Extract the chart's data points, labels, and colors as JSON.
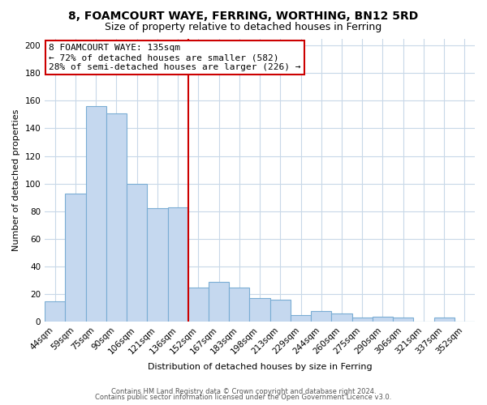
{
  "title": "8, FOAMCOURT WAYE, FERRING, WORTHING, BN12 5RD",
  "subtitle": "Size of property relative to detached houses in Ferring",
  "xlabel": "Distribution of detached houses by size in Ferring",
  "ylabel": "Number of detached properties",
  "categories": [
    "44sqm",
    "59sqm",
    "75sqm",
    "90sqm",
    "106sqm",
    "121sqm",
    "136sqm",
    "152sqm",
    "167sqm",
    "183sqm",
    "198sqm",
    "213sqm",
    "229sqm",
    "244sqm",
    "260sqm",
    "275sqm",
    "290sqm",
    "306sqm",
    "321sqm",
    "337sqm",
    "352sqm"
  ],
  "values": [
    15,
    93,
    156,
    151,
    100,
    82,
    83,
    25,
    29,
    25,
    17,
    16,
    5,
    8,
    6,
    3,
    4,
    3,
    0,
    3,
    0
  ],
  "bar_color": "#c5d8ef",
  "bar_edge_color": "#7aadd4",
  "vline_color": "#cc0000",
  "vline_x_index": 6,
  "annotation_line1": "8 FOAMCOURT WAYE: 135sqm",
  "annotation_line2": "← 72% of detached houses are smaller (582)",
  "annotation_line3": "28% of semi-detached houses are larger (226) →",
  "annotation_box_edgecolor": "#cc0000",
  "annotation_box_facecolor": "#ffffff",
  "ylim": [
    0,
    205
  ],
  "yticks": [
    0,
    20,
    40,
    60,
    80,
    100,
    120,
    140,
    160,
    180,
    200
  ],
  "footer1": "Contains HM Land Registry data © Crown copyright and database right 2024.",
  "footer2": "Contains public sector information licensed under the Open Government Licence v3.0.",
  "background_color": "#ffffff",
  "grid_color": "#c8d8e8",
  "title_fontsize": 10,
  "subtitle_fontsize": 9,
  "annotation_fontsize": 8,
  "axis_label_fontsize": 8,
  "tick_fontsize": 7.5,
  "footer_fontsize": 6
}
